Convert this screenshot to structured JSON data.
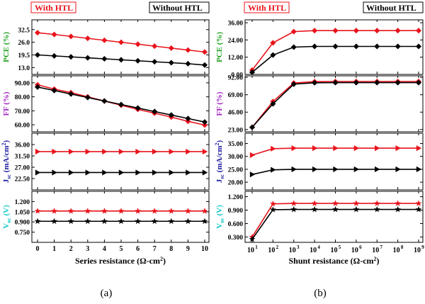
{
  "chart_data": [
    {
      "panel": "a",
      "type": "line",
      "caption": "(a)",
      "legend": {
        "with_htl": "With HTL",
        "without_htl": "Without HTL"
      },
      "xlabel": "Series resistance (Ω-cm²)",
      "x": [
        0,
        1,
        2,
        3,
        4,
        5,
        6,
        7,
        8,
        9,
        10
      ],
      "xticks": [
        "0",
        "1",
        "2",
        "3",
        "4",
        "5",
        "6",
        "7",
        "8",
        "9",
        "10"
      ],
      "subplots": [
        {
          "key": "pce",
          "ylabel": "PCE (%)",
          "ylabel_color": "#20a020",
          "ylim": [
            9.5,
            37.5
          ],
          "yticks": [
            13.0,
            19.5,
            26.0,
            32.5
          ],
          "ytick_labels": [
            "13.0",
            "19.5",
            "26.0",
            "32.5"
          ],
          "series": [
            {
              "name": "With HTL",
              "color": "#e8141c",
              "marker": "diamond",
              "values": [
                30.9,
                30.0,
                29.0,
                28.0,
                27.0,
                26.0,
                25.0,
                24.0,
                23.0,
                22.0,
                21.0
              ]
            },
            {
              "name": "Without HTL",
              "color": "#000000",
              "marker": "diamond",
              "values": [
                19.5,
                19.0,
                18.5,
                18.0,
                17.5,
                17.0,
                16.5,
                16.0,
                15.5,
                15.0,
                14.3
              ]
            }
          ]
        },
        {
          "key": "ff",
          "ylabel": "FF (%)",
          "ylabel_color": "#a020c0",
          "ylim": [
            55,
            95
          ],
          "yticks": [
            60.0,
            70.0,
            80.0,
            90.0
          ],
          "ytick_labels": [
            "60.00",
            "70.00",
            "80.00",
            "90.00"
          ],
          "series": [
            {
              "name": "With HTL",
              "color": "#e8141c",
              "marker": "diamond",
              "values": [
                88.6,
                85.5,
                83.0,
                80.0,
                77.0,
                74.0,
                71.0,
                68.3,
                65.5,
                62.5,
                59.8
              ]
            },
            {
              "name": "Without HTL",
              "color": "#000000",
              "marker": "diamond",
              "values": [
                87.0,
                84.5,
                82.0,
                79.5,
                77.0,
                74.5,
                72.0,
                69.5,
                67.0,
                64.5,
                62.0
              ]
            }
          ]
        },
        {
          "key": "jsc",
          "ylabel": "Jsc (mA/cm²)",
          "ylabel_color": "#1a1aa0",
          "ylim": [
            18,
            40.5
          ],
          "yticks": [
            22.5,
            27.0,
            31.5,
            36.0
          ],
          "ytick_labels": [
            "22.50",
            "27.00",
            "31.50",
            "36.00"
          ],
          "series": [
            {
              "name": "With HTL",
              "color": "#e8141c",
              "marker": "triangle-right",
              "values": [
                33.2,
                33.2,
                33.2,
                33.2,
                33.2,
                33.2,
                33.2,
                33.2,
                33.2,
                33.2,
                33.2
              ]
            },
            {
              "name": "Without HTL",
              "color": "#000000",
              "marker": "triangle-right",
              "values": [
                24.9,
                24.9,
                24.9,
                24.9,
                24.9,
                24.9,
                24.9,
                24.9,
                24.9,
                24.9,
                24.9
              ]
            }
          ]
        },
        {
          "key": "voc",
          "ylabel": "Voc (V)",
          "ylabel_color": "#10c8c8",
          "ylim": [
            0.6,
            1.35
          ],
          "yticks": [
            0.75,
            0.9,
            1.05,
            1.2
          ],
          "ytick_labels": [
            "0.750",
            "0.900",
            "1.050",
            "1.200"
          ],
          "series": [
            {
              "name": "With HTL",
              "color": "#e8141c",
              "marker": "star",
              "values": [
                1.06,
                1.06,
                1.06,
                1.06,
                1.06,
                1.06,
                1.06,
                1.06,
                1.06,
                1.06,
                1.06
              ]
            },
            {
              "name": "Without HTL",
              "color": "#000000",
              "marker": "star",
              "values": [
                0.91,
                0.91,
                0.91,
                0.91,
                0.91,
                0.91,
                0.91,
                0.91,
                0.91,
                0.91,
                0.91
              ]
            }
          ]
        }
      ]
    },
    {
      "panel": "b",
      "type": "line",
      "caption": "(b)",
      "legend": {
        "with_htl": "With HTL",
        "without_htl": "Without HTL"
      },
      "xlabel": "Shunt resistance (Ω-cm²)",
      "x_exponents": [
        1,
        2,
        3,
        4,
        5,
        6,
        7,
        8,
        9
      ],
      "xticks": [
        "10",
        "10",
        "10",
        "10",
        "10",
        "10",
        "10",
        "10",
        "10"
      ],
      "xtick_exponents": [
        "1",
        "2",
        "3",
        "4",
        "5",
        "6",
        "7",
        "8",
        "9"
      ],
      "x_scale": "log",
      "subplots": [
        {
          "key": "pce",
          "ylabel": "PCE (%)",
          "ylabel_color": "#20a020",
          "ylim": [
            0,
            38
          ],
          "yticks": [
            0.0,
            12.0,
            24.0,
            36.0
          ],
          "ytick_labels": [
            "0.00",
            "12.00",
            "24.00",
            "36.00"
          ],
          "series": [
            {
              "name": "With HTL",
              "color": "#e8141c",
              "marker": "diamond",
              "values": [
                3.0,
                22.0,
                29.8,
                30.5,
                30.5,
                30.5,
                30.5,
                30.5,
                30.5
              ]
            },
            {
              "name": "Without HTL",
              "color": "#000000",
              "marker": "diamond",
              "values": [
                1.5,
                13.5,
                19.0,
                19.5,
                19.5,
                19.5,
                19.5,
                19.5,
                19.5
              ]
            }
          ]
        },
        {
          "key": "ff",
          "ylabel": "FF (%)",
          "ylabel_color": "#a020c0",
          "ylim": [
            20,
            94
          ],
          "yticks": [
            23.0,
            46.0,
            69.0,
            92.0
          ],
          "ytick_labels": [
            "23.00",
            "46.00",
            "69.00",
            "92.00"
          ],
          "series": [
            {
              "name": "With HTL",
              "color": "#e8141c",
              "marker": "diamond",
              "values": [
                26.0,
                60.0,
                84.5,
                86.3,
                86.5,
                86.5,
                86.5,
                86.5,
                86.5
              ]
            },
            {
              "name": "Without HTL",
              "color": "#000000",
              "marker": "diamond",
              "values": [
                26.0,
                57.0,
                83.0,
                84.8,
                85.0,
                85.0,
                85.0,
                85.0,
                85.0
              ]
            }
          ]
        },
        {
          "key": "jsc",
          "ylabel": "Jsc (mA/cm²)",
          "ylabel_color": "#1a1aa0",
          "ylim": [
            17,
            39
          ],
          "yticks": [
            20.0,
            25.0,
            30.0,
            35.0
          ],
          "ytick_labels": [
            "20.00",
            "25.00",
            "30.00",
            "35.00"
          ],
          "series": [
            {
              "name": "With HTL",
              "color": "#e8141c",
              "marker": "triangle-right",
              "values": [
                30.5,
                33.0,
                33.2,
                33.2,
                33.2,
                33.2,
                33.2,
                33.2,
                33.2
              ]
            },
            {
              "name": "Without HTL",
              "color": "#000000",
              "marker": "triangle-right",
              "values": [
                23.0,
                24.8,
                25.0,
                25.0,
                25.0,
                25.0,
                25.0,
                25.0,
                25.0
              ]
            }
          ]
        },
        {
          "key": "voc",
          "ylabel": "Voc (V)",
          "ylabel_color": "#10c8c8",
          "ylim": [
            0.18,
            1.32
          ],
          "yticks": [
            0.3,
            0.6,
            0.9,
            1.2
          ],
          "ytick_labels": [
            "0.300",
            "0.600",
            "0.900",
            "1.200"
          ],
          "series": [
            {
              "name": "With HTL",
              "color": "#e8141c",
              "marker": "star",
              "values": [
                0.3,
                1.04,
                1.05,
                1.05,
                1.05,
                1.05,
                1.05,
                1.05,
                1.05
              ]
            },
            {
              "name": "Without HTL",
              "color": "#000000",
              "marker": "star",
              "values": [
                0.25,
                0.91,
                0.915,
                0.915,
                0.915,
                0.915,
                0.915,
                0.915,
                0.915
              ]
            }
          ]
        }
      ]
    }
  ]
}
